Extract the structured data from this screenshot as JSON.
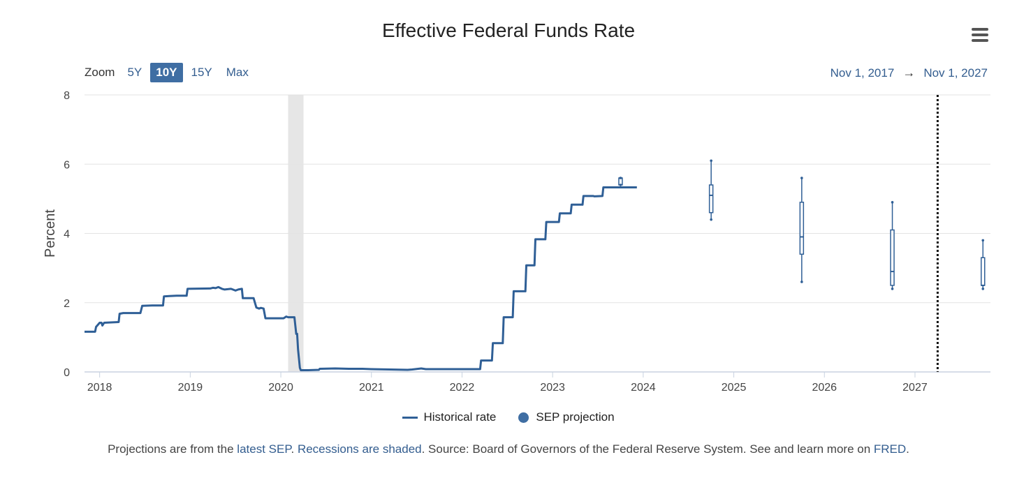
{
  "header": {
    "zoom_label": "Zoom",
    "zoom_options": [
      "5Y",
      "10Y",
      "15Y",
      "Max"
    ],
    "active_zoom": "10Y",
    "range_from": "Nov 1, 2017",
    "range_arrow": "→",
    "range_to": "Nov 1, 2027"
  },
  "legend": {
    "historical": "Historical rate",
    "sep": "SEP projection"
  },
  "footer": {
    "prefix": "Projections are from the ",
    "latest_sep": "latest SEP",
    "dot": ". ",
    "recessions": "Recessions are shaded",
    "middle": ". Source: Board of Governors of the Federal Reserve System. See and learn more on ",
    "fred": "FRED",
    "end": "."
  },
  "colors": {
    "series": "#2f5f96",
    "recession": "#e6e6e6",
    "grid": "#e3e3e3",
    "axis": "#c8d2e0"
  },
  "chart_data": {
    "type": "line",
    "title": "Effective Federal Funds Rate",
    "xlabel": "",
    "ylabel": "Percent",
    "xlim": [
      2017.833,
      2027.833
    ],
    "ylim": [
      0,
      8
    ],
    "y_ticks": [
      0,
      2,
      4,
      6,
      8
    ],
    "x_ticks": [
      2018,
      2019,
      2020,
      2021,
      2022,
      2023,
      2024,
      2025,
      2026,
      2027
    ],
    "grid": true,
    "legend_position": "bottom-center",
    "recessions": [
      [
        2020.08,
        2020.25
      ]
    ],
    "vertical_marker": 2027.25,
    "series": [
      {
        "name": "Historical rate",
        "x": [
          2017.833,
          2017.95,
          2017.96,
          2018.0,
          2018.02,
          2018.03,
          2018.05,
          2018.21,
          2018.22,
          2018.26,
          2018.45,
          2018.47,
          2018.58,
          2018.7,
          2018.71,
          2018.77,
          2018.85,
          2018.96,
          2018.97,
          2019.22,
          2019.25,
          2019.28,
          2019.31,
          2019.35,
          2019.38,
          2019.45,
          2019.5,
          2019.53,
          2019.57,
          2019.58,
          2019.7,
          2019.71,
          2019.73,
          2019.76,
          2019.78,
          2019.81,
          2019.83,
          2019.97,
          2020.0,
          2020.03,
          2020.06,
          2020.08,
          2020.15,
          2020.17,
          2020.18,
          2020.19,
          2020.21,
          2020.22,
          2020.25,
          2020.3,
          2020.42,
          2020.43,
          2020.6,
          2020.75,
          2020.9,
          2021.0,
          2021.2,
          2021.4,
          2021.45,
          2021.55,
          2021.6,
          2021.8,
          2022.0,
          2022.2,
          2022.21,
          2022.33,
          2022.34,
          2022.45,
          2022.46,
          2022.56,
          2022.57,
          2022.7,
          2022.71,
          2022.8,
          2022.81,
          2022.92,
          2022.93,
          2023.07,
          2023.08,
          2023.2,
          2023.21,
          2023.33,
          2023.34,
          2023.45,
          2023.46,
          2023.55,
          2023.56,
          2023.68,
          2023.7,
          2023.93
        ],
        "y": [
          1.16,
          1.16,
          1.3,
          1.42,
          1.42,
          1.34,
          1.42,
          1.44,
          1.68,
          1.7,
          1.7,
          1.91,
          1.92,
          1.92,
          2.18,
          2.19,
          2.2,
          2.2,
          2.4,
          2.41,
          2.43,
          2.42,
          2.45,
          2.4,
          2.38,
          2.4,
          2.35,
          2.38,
          2.4,
          2.13,
          2.13,
          2.04,
          1.86,
          1.83,
          1.85,
          1.83,
          1.55,
          1.55,
          1.55,
          1.55,
          1.6,
          1.58,
          1.58,
          1.1,
          1.1,
          0.65,
          0.12,
          0.05,
          0.05,
          0.05,
          0.06,
          0.09,
          0.1,
          0.09,
          0.09,
          0.08,
          0.07,
          0.06,
          0.07,
          0.1,
          0.08,
          0.08,
          0.08,
          0.08,
          0.33,
          0.33,
          0.83,
          0.83,
          1.58,
          1.58,
          2.33,
          2.33,
          3.08,
          3.08,
          3.83,
          3.83,
          4.33,
          4.33,
          4.58,
          4.58,
          4.83,
          4.83,
          5.08,
          5.08,
          5.07,
          5.08,
          5.33,
          5.33,
          5.33,
          5.33
        ]
      }
    ],
    "sep_projection": [
      {
        "x": 2023.75,
        "min": 5.4,
        "q1": 5.4,
        "median": 5.6,
        "q3": 5.6,
        "max": 5.6
      },
      {
        "x": 2024.75,
        "min": 4.4,
        "q1": 4.6,
        "median": 5.1,
        "q3": 5.4,
        "max": 6.1
      },
      {
        "x": 2025.75,
        "min": 2.6,
        "q1": 3.4,
        "median": 3.9,
        "q3": 4.9,
        "max": 5.6
      },
      {
        "x": 2026.75,
        "min": 2.4,
        "q1": 2.5,
        "median": 2.9,
        "q3": 4.1,
        "max": 4.9
      },
      {
        "x": 2027.75,
        "min": 2.4,
        "q1": 2.5,
        "median": 2.5,
        "q3": 3.3,
        "max": 3.8
      }
    ]
  }
}
